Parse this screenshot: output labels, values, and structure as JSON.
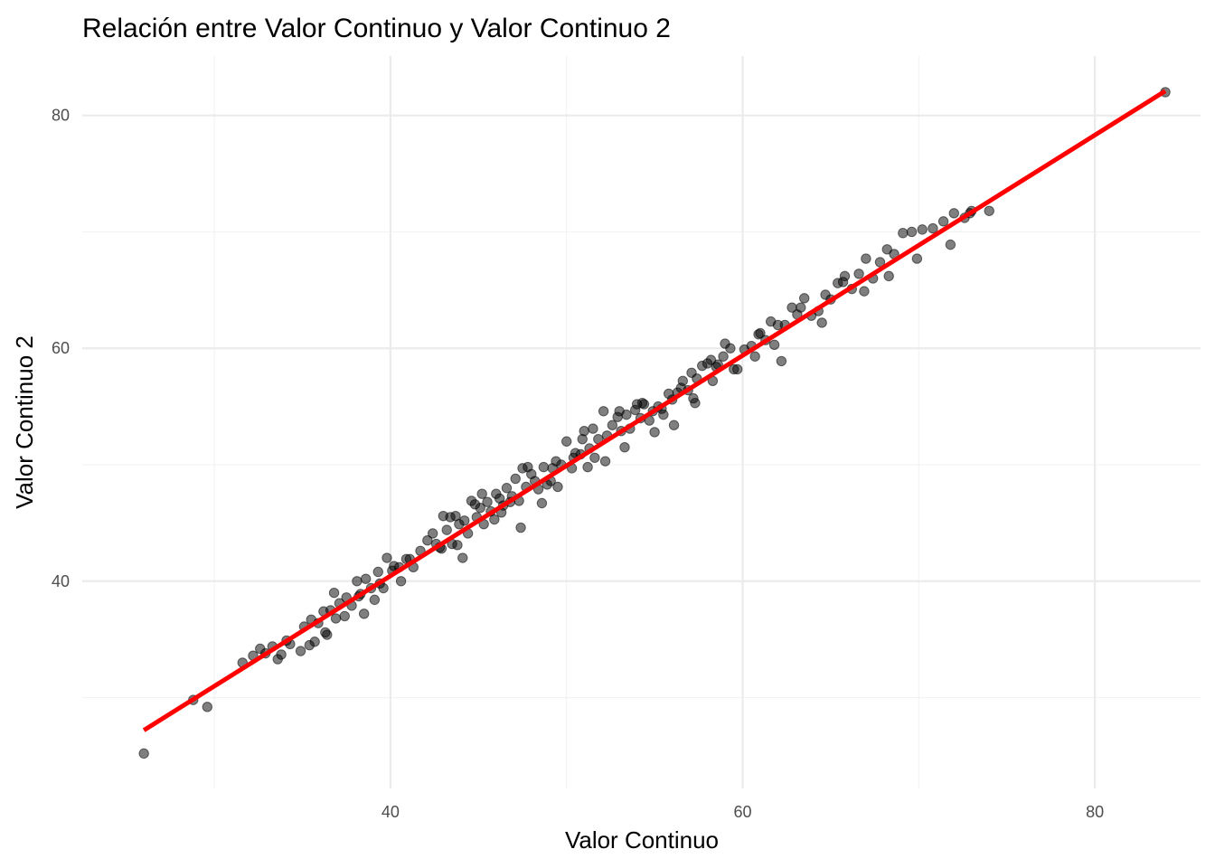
{
  "chart_data": {
    "type": "scatter",
    "title": "Relación entre Valor Continuo y Valor Continuo 2",
    "xlabel": "Valor Continuo",
    "ylabel": "Valor Continuo 2",
    "xlim": [
      22.5,
      86
    ],
    "ylim": [
      22.2,
      85.1
    ],
    "xticks": [
      40,
      60,
      80
    ],
    "yticks": [
      40,
      60,
      80
    ],
    "grid": true,
    "legend": "none",
    "trendline": {
      "type": "linear",
      "from": [
        26,
        27.2
      ],
      "to": [
        84,
        82.1
      ],
      "color": "#ff0000"
    },
    "series": [
      {
        "color": "#000000",
        "x": [
          26,
          28.8,
          29.6,
          84,
          31.6,
          32.2,
          32.6,
          32.9,
          33.3,
          33.6,
          34.1,
          34.3,
          34.9,
          35.1,
          35.5,
          35.7,
          35.9,
          36.2,
          36.4,
          36.6,
          36.9,
          37.1,
          37.5,
          37.8,
          38.1,
          38.3,
          38.6,
          38.9,
          39.1,
          39.3,
          39.6,
          39.8,
          40.2,
          40.6,
          40.9,
          41.3,
          41.7,
          42.1,
          42.4,
          42.8,
          43.0,
          43.2,
          43.5,
          43.7,
          43.9,
          44.2,
          44.4,
          44.6,
          44.9,
          45.1,
          45.3,
          45.5,
          45.7,
          46.0,
          46.2,
          46.4,
          46.6,
          46.9,
          47.1,
          47.3,
          47.5,
          47.7,
          48.0,
          48.2,
          48.4,
          48.7,
          48.9,
          49.2,
          49.4,
          49.7,
          50.0,
          50.3,
          50.5,
          50.8,
          51.0,
          51.3,
          51.6,
          51.8,
          52.1,
          52.3,
          52.6,
          52.9,
          53.1,
          53.4,
          53.6,
          53.9,
          54.2,
          54.4,
          54.7,
          54.9,
          55.2,
          55.5,
          55.8,
          56.0,
          56.3,
          56.6,
          56.9,
          57.1,
          57.4,
          57.7,
          58.0,
          58.2,
          58.5,
          58.9,
          59.3,
          59.7,
          60.1,
          60.5,
          60.9,
          61.3,
          61.6,
          62.0,
          62.4,
          62.8,
          63.1,
          63.5,
          63.9,
          64.3,
          64.7,
          65.0,
          65.4,
          65.8,
          66.2,
          66.6,
          67.0,
          67.4,
          67.8,
          68.2,
          68.6,
          69.1,
          69.6,
          70.2,
          70.8,
          71.4,
          72.0,
          72.6,
          73.0,
          74.0,
          33.8,
          36.8,
          35.4,
          38.5,
          39.4,
          40.1,
          41.1,
          42.9,
          43.4,
          44.1,
          45.2,
          46.3,
          47.4,
          48.6,
          49.5,
          50.4,
          51.5,
          52.2,
          53.3,
          54.3,
          55.4,
          56.5,
          57.3,
          58.6,
          59.5,
          60.7,
          61.8,
          62.2,
          63.3,
          64.5,
          65.7,
          66.9,
          68.3,
          69.9,
          71.8,
          72.9,
          44.8,
          45.9,
          47.8,
          50.9,
          51.2,
          53.0,
          54.0,
          55.0,
          56.1,
          57.2,
          58.3,
          49.1,
          42.6,
          46.8,
          40.5,
          37.4,
          59.0,
          61.0,
          43.8,
          36.3,
          38.2
        ],
        "y": [
          25.2,
          29.8,
          29.2,
          82.0,
          33.0,
          33.6,
          34.2,
          33.8,
          34.4,
          33.3,
          34.9,
          34.6,
          34.0,
          36.1,
          36.7,
          34.8,
          36.4,
          37.4,
          35.4,
          37.5,
          36.8,
          38.1,
          38.6,
          37.9,
          40.0,
          38.9,
          40.2,
          39.4,
          38.4,
          40.8,
          39.4,
          42.0,
          41.3,
          40.0,
          41.9,
          41.2,
          42.6,
          43.5,
          44.1,
          42.9,
          45.6,
          44.4,
          43.2,
          45.6,
          44.9,
          45.2,
          44.1,
          46.9,
          45.5,
          46.3,
          44.9,
          46.8,
          46.0,
          47.5,
          47.1,
          46.5,
          48.0,
          47.3,
          48.8,
          46.9,
          49.7,
          48.1,
          49.2,
          48.6,
          47.9,
          49.8,
          48.3,
          49.7,
          50.3,
          50.0,
          52.0,
          49.7,
          51.0,
          50.9,
          52.9,
          51.4,
          50.6,
          52.2,
          54.6,
          52.5,
          53.4,
          54.1,
          52.9,
          54.3,
          53.1,
          54.7,
          54.0,
          55.2,
          53.8,
          54.6,
          55.0,
          54.3,
          56.1,
          55.6,
          56.2,
          57.2,
          56.4,
          57.9,
          57.4,
          58.5,
          58.7,
          59.0,
          58.4,
          59.3,
          60.0,
          58.2,
          59.9,
          60.2,
          61.2,
          60.7,
          62.3,
          62.0,
          62.0,
          63.5,
          62.9,
          64.3,
          62.8,
          63.2,
          64.6,
          64.2,
          65.6,
          66.2,
          65.1,
          66.4,
          67.7,
          66.0,
          67.4,
          68.5,
          68.1,
          69.9,
          70.0,
          70.2,
          70.3,
          70.9,
          71.6,
          71.2,
          71.8,
          71.8,
          33.7,
          39.0,
          34.5,
          37.2,
          39.8,
          40.9,
          41.9,
          42.8,
          45.5,
          42.0,
          47.5,
          45.9,
          44.6,
          46.7,
          48.1,
          50.6,
          53.1,
          50.3,
          51.5,
          55.3,
          54.8,
          56.6,
          55.3,
          58.6,
          58.2,
          59.3,
          60.3,
          58.9,
          63.5,
          62.2,
          65.7,
          64.9,
          66.2,
          67.7,
          68.9,
          71.6,
          46.6,
          45.3,
          49.8,
          52.2,
          49.8,
          54.6,
          55.2,
          52.8,
          53.4,
          55.7,
          57.2,
          48.6,
          43.2,
          46.8,
          41.2,
          37.0,
          60.4,
          61.3,
          43.1,
          35.6,
          38.7
        ]
      }
    ]
  }
}
